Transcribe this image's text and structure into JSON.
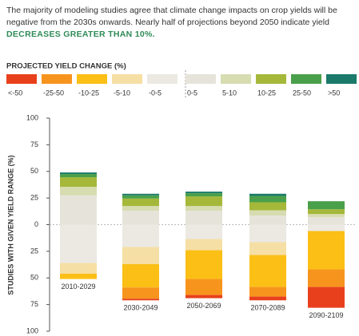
{
  "chart_data": {
    "type": "bar",
    "intro": "The majority of modeling studies agree that climate change impacts on crop yields will be negative from the 2030s onwards. Nearly half of projections beyond 2050 indicate yield",
    "highlight": "DECREASES GREATER THAN 10%.",
    "legend_title": "PROJECTED YIELD CHANGE (%)",
    "y_label": "STUDIES WITH GIVEN YIELD RANGE (%)",
    "categories": [
      "2010-2029",
      "2030-2049",
      "2050-2069",
      "2070-2089",
      "2090-2109"
    ],
    "stacked": true,
    "series": [
      {
        "name": "<-50",
        "color": "#e8401c",
        "values": [
          0,
          -1.5,
          -3,
          -3.5,
          -19.5
        ]
      },
      {
        "name": "-25-50",
        "color": "#f7941d",
        "values": [
          0,
          -10.5,
          -15,
          -9,
          -16.5
        ]
      },
      {
        "name": "-10-25",
        "color": "#fbbf16",
        "values": [
          -5,
          -22,
          -27,
          -30,
          -36
        ]
      },
      {
        "name": "-5-10",
        "color": "#f6dfa4",
        "values": [
          -10,
          -16,
          -10.5,
          -12,
          0
        ]
      },
      {
        "name": "-0-5",
        "color": "#ece9e2",
        "values": [
          -36,
          -21,
          -13.5,
          -16.5,
          -6
        ]
      },
      {
        "name": "0-5",
        "color": "#e6e4da",
        "values": [
          27.5,
          13,
          13,
          8.5,
          7
        ]
      },
      {
        "name": "5-10",
        "color": "#d7dcb1",
        "values": [
          8,
          4.5,
          4.5,
          5,
          3
        ]
      },
      {
        "name": "10-25",
        "color": "#a5b83a",
        "values": [
          9,
          7,
          9,
          7.5,
          4.5
        ]
      },
      {
        "name": "25-50",
        "color": "#4aa04a",
        "values": [
          3,
          3,
          3,
          6,
          7.5
        ]
      },
      {
        "name": ">50",
        "color": "#1b7a6a",
        "values": [
          1.5,
          1.5,
          1.5,
          2,
          0
        ]
      }
    ],
    "ylim": [
      -100,
      100
    ],
    "yticks": [
      {
        "value": -100,
        "label": "100"
      },
      {
        "value": -75,
        "label": "75"
      },
      {
        "value": -50,
        "label": "50"
      },
      {
        "value": -25,
        "label": "25"
      },
      0,
      25,
      50,
      75,
      100
    ]
  }
}
